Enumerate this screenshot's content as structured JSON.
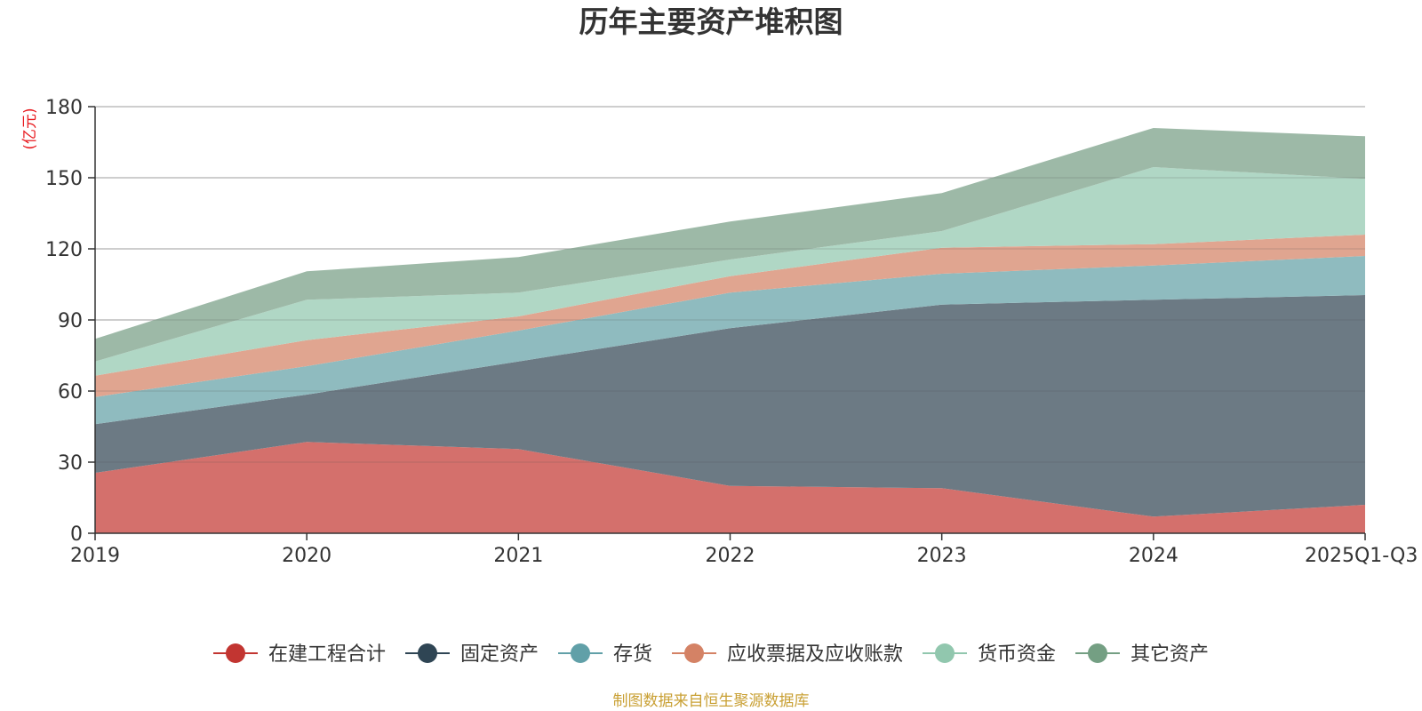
{
  "chart_data": {
    "type": "area",
    "stacked": true,
    "title": "历年主要资产堆积图",
    "unit": "(亿元)",
    "source": "制图数据来自恒生聚源数据库",
    "categories": [
      "2019",
      "2020",
      "2021",
      "2022",
      "2023",
      "2024",
      "2025Q1-Q3"
    ],
    "ylim": [
      0,
      180
    ],
    "yticks": [
      "0",
      "30",
      "60",
      "90",
      "120",
      "150",
      "180"
    ],
    "grid": true,
    "legend_position": "bottom",
    "series": [
      {
        "name": "在建工程合计",
        "color": "#c23531",
        "fill": "#d4706c",
        "values": [
          25.5,
          38.5,
          35.5,
          20,
          19,
          7,
          12
        ]
      },
      {
        "name": "固定资产",
        "color": "#2f4554",
        "fill": "#6c7a84",
        "values": [
          20.5,
          20,
          37,
          66.5,
          77.5,
          91.5,
          88.5
        ]
      },
      {
        "name": "存货",
        "color": "#61a0a8",
        "fill": "#8fbbbf",
        "values": [
          11.5,
          12,
          13,
          15,
          13,
          14.5,
          16.5
        ]
      },
      {
        "name": "应收票据及应收账款",
        "color": "#d48265",
        "fill": "#e0a590",
        "values": [
          9,
          11,
          6,
          7,
          11,
          9,
          9
        ]
      },
      {
        "name": "货币资金",
        "color": "#91c7ae",
        "fill": "#b0d7c5",
        "values": [
          6,
          17,
          10,
          7,
          7,
          32.5,
          23.5
        ]
      },
      {
        "name": "其它资产",
        "color": "#749f83",
        "fill": "#9db9a7",
        "values": [
          9.5,
          12,
          15,
          16,
          16,
          16.5,
          18
        ]
      }
    ]
  }
}
